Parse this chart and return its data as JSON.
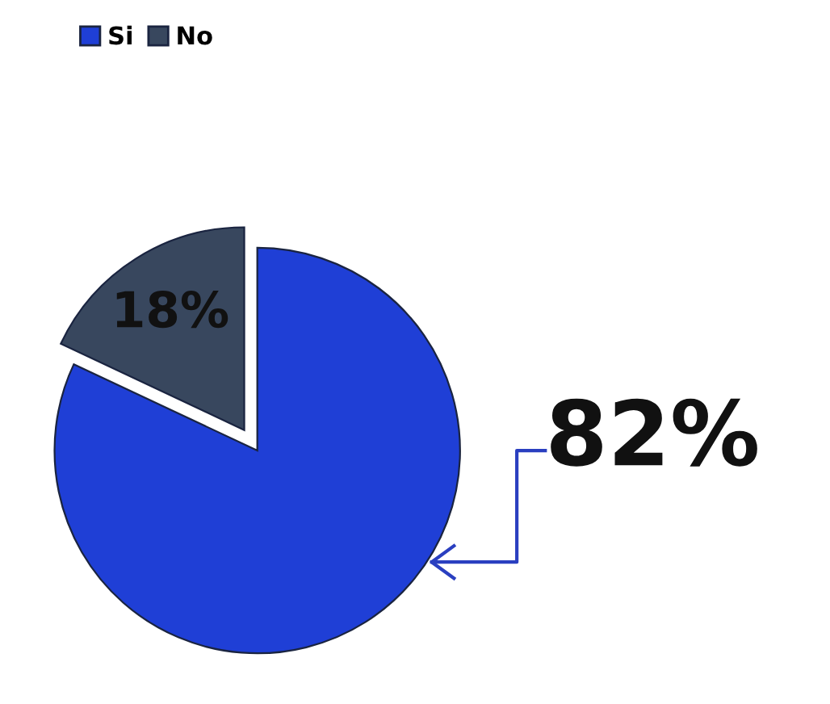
{
  "chart_data": {
    "type": "pie",
    "categories": [
      "Si",
      "No"
    ],
    "values": [
      82,
      18
    ],
    "colors": [
      "#1f3fd6",
      "#38475e"
    ],
    "value_labels": [
      "82%",
      "18%"
    ],
    "legend": "top left"
  }
}
